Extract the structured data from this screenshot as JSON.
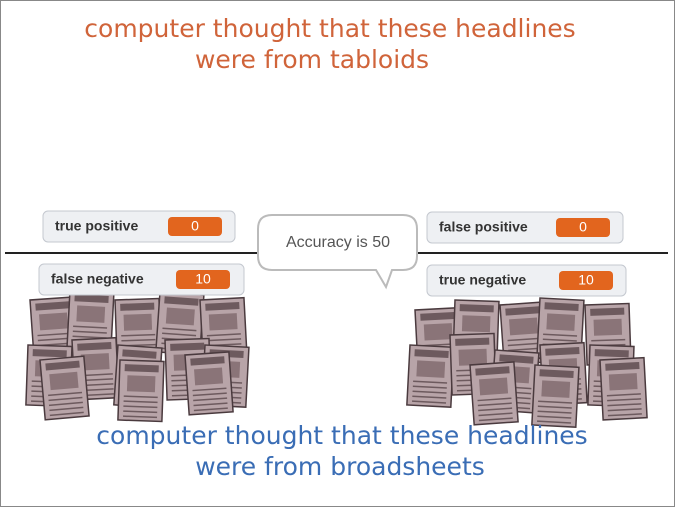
{
  "top_caption": {
    "lines": [
      "computer thought that these headlines",
      "were from  tabloids"
    ]
  },
  "bottom_caption": {
    "lines": [
      "computer thought that these headlines",
      "were from  broadsheets"
    ]
  },
  "monitors": [
    {
      "label": "true positive",
      "value": 0
    },
    {
      "label": "false positive",
      "value": 0
    },
    {
      "label": "false negative",
      "value": 10
    },
    {
      "label": "true negative",
      "value": 10
    }
  ],
  "speech_bubble": {
    "text": "Accuracy is 50"
  }
}
